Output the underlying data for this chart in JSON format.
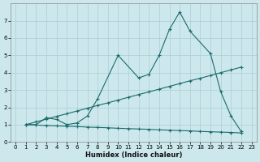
{
  "xlabel": "Humidex (Indice chaleur)",
  "ylabel": "",
  "bg_color": "#cce8ec",
  "grid_color": "#aacdd4",
  "line_color": "#1a6b6b",
  "xlim": [
    -0.5,
    23.5
  ],
  "ylim": [
    0,
    8
  ],
  "xticks": [
    0,
    1,
    2,
    3,
    4,
    5,
    6,
    7,
    8,
    9,
    10,
    11,
    12,
    13,
    14,
    15,
    16,
    17,
    18,
    19,
    20,
    21,
    22,
    23
  ],
  "yticks": [
    0,
    1,
    2,
    3,
    4,
    5,
    6,
    7
  ],
  "line1_x": [
    1,
    2,
    3,
    4,
    5,
    6,
    7,
    8,
    10,
    12,
    13,
    14,
    15,
    16,
    17,
    19,
    20,
    21,
    22
  ],
  "line1_y": [
    1,
    1,
    1.4,
    1.3,
    1.0,
    1.1,
    1.5,
    2.5,
    5.0,
    3.7,
    3.9,
    5.0,
    6.5,
    7.5,
    6.4,
    5.1,
    2.9,
    1.5,
    0.6
  ],
  "line2_x": [
    1,
    2,
    3,
    4,
    5,
    6,
    7,
    8,
    9,
    10,
    11,
    12,
    13,
    14,
    15,
    16,
    17,
    18,
    19,
    20,
    21,
    22
  ],
  "line2_y": [
    1.0,
    1.16,
    1.32,
    1.48,
    1.63,
    1.79,
    1.95,
    2.11,
    2.26,
    2.42,
    2.58,
    2.74,
    2.89,
    3.05,
    3.21,
    3.37,
    3.53,
    3.68,
    3.84,
    4.0,
    4.16,
    4.32
  ],
  "line3_x": [
    1,
    2,
    3,
    4,
    5,
    6,
    7,
    8,
    9,
    10,
    11,
    12,
    13,
    14,
    15,
    16,
    17,
    18,
    19,
    20,
    21,
    22
  ],
  "line3_y": [
    1.0,
    0.98,
    0.95,
    0.93,
    0.91,
    0.89,
    0.86,
    0.84,
    0.82,
    0.79,
    0.77,
    0.75,
    0.73,
    0.7,
    0.68,
    0.66,
    0.64,
    0.61,
    0.59,
    0.57,
    0.55,
    0.52
  ],
  "marker": "+",
  "linewidth": 0.8,
  "markersize": 3,
  "tick_fontsize": 5.0,
  "xlabel_fontsize": 6.0
}
